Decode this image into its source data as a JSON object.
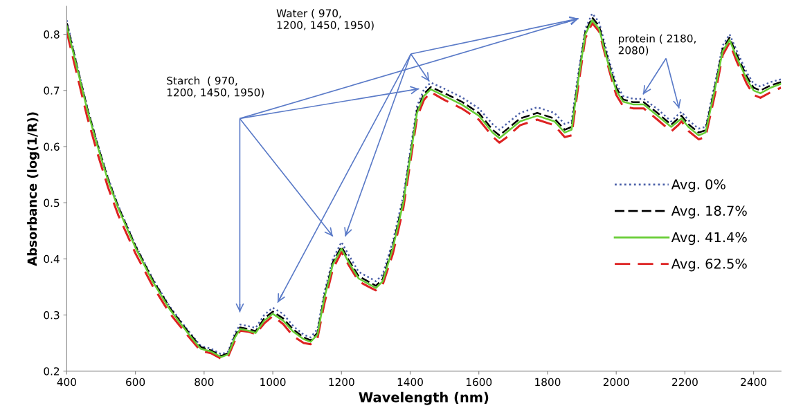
{
  "chart_data": {
    "type": "line",
    "xlabel": "Wavelength (nm)",
    "ylabel": "Absorbance (log(1/R))",
    "x": [
      400,
      430,
      460,
      490,
      520,
      550,
      600,
      650,
      700,
      750,
      790,
      820,
      850,
      870,
      890,
      905,
      930,
      950,
      975,
      1000,
      1030,
      1060,
      1090,
      1110,
      1130,
      1150,
      1175,
      1200,
      1220,
      1250,
      1280,
      1300,
      1320,
      1350,
      1380,
      1400,
      1420,
      1440,
      1460,
      1500,
      1550,
      1600,
      1640,
      1660,
      1680,
      1720,
      1770,
      1820,
      1850,
      1870,
      1890,
      1910,
      1930,
      1950,
      1980,
      2000,
      2020,
      2050,
      2080,
      2120,
      2160,
      2180,
      2190,
      2210,
      2240,
      2260,
      2290,
      2310,
      2330,
      2350,
      2380,
      2400,
      2420,
      2450,
      2480
    ],
    "series": [
      {
        "name": "Avg. 0%",
        "color": "#4a5fa8",
        "line_style": "dotted",
        "values": [
          0.825,
          0.745,
          0.67,
          0.605,
          0.545,
          0.495,
          0.425,
          0.365,
          0.315,
          0.275,
          0.245,
          0.24,
          0.23,
          0.235,
          0.268,
          0.283,
          0.28,
          0.277,
          0.3,
          0.313,
          0.302,
          0.28,
          0.265,
          0.26,
          0.275,
          0.34,
          0.4,
          0.43,
          0.408,
          0.377,
          0.367,
          0.36,
          0.372,
          0.432,
          0.512,
          0.592,
          0.672,
          0.702,
          0.714,
          0.703,
          0.688,
          0.668,
          0.64,
          0.63,
          0.64,
          0.66,
          0.67,
          0.66,
          0.64,
          0.645,
          0.733,
          0.81,
          0.837,
          0.822,
          0.752,
          0.712,
          0.69,
          0.685,
          0.685,
          0.667,
          0.645,
          0.657,
          0.662,
          0.647,
          0.632,
          0.635,
          0.72,
          0.78,
          0.8,
          0.772,
          0.732,
          0.712,
          0.707,
          0.715,
          0.72
        ]
      },
      {
        "name": "Avg. 18.7%",
        "color": "#000000",
        "line_style": "dashed",
        "values": [
          0.82,
          0.743,
          0.668,
          0.603,
          0.543,
          0.493,
          0.423,
          0.363,
          0.313,
          0.273,
          0.243,
          0.237,
          0.227,
          0.232,
          0.263,
          0.278,
          0.275,
          0.271,
          0.294,
          0.306,
          0.294,
          0.274,
          0.26,
          0.255,
          0.268,
          0.333,
          0.394,
          0.422,
          0.399,
          0.369,
          0.359,
          0.352,
          0.364,
          0.424,
          0.504,
          0.584,
          0.664,
          0.694,
          0.706,
          0.695,
          0.68,
          0.66,
          0.63,
          0.62,
          0.63,
          0.65,
          0.66,
          0.65,
          0.63,
          0.635,
          0.724,
          0.804,
          0.83,
          0.815,
          0.745,
          0.705,
          0.684,
          0.679,
          0.679,
          0.66,
          0.639,
          0.65,
          0.655,
          0.64,
          0.625,
          0.629,
          0.714,
          0.774,
          0.794,
          0.765,
          0.725,
          0.705,
          0.7,
          0.709,
          0.715
        ]
      },
      {
        "name": "Avg. 41.4%",
        "color": "#66cc33",
        "line_style": "solid",
        "values": [
          0.815,
          0.74,
          0.665,
          0.6,
          0.54,
          0.49,
          0.42,
          0.36,
          0.31,
          0.27,
          0.24,
          0.235,
          0.225,
          0.23,
          0.26,
          0.275,
          0.272,
          0.268,
          0.29,
          0.302,
          0.29,
          0.27,
          0.257,
          0.252,
          0.265,
          0.33,
          0.39,
          0.418,
          0.395,
          0.365,
          0.355,
          0.348,
          0.36,
          0.42,
          0.5,
          0.58,
          0.66,
          0.69,
          0.702,
          0.69,
          0.675,
          0.655,
          0.625,
          0.615,
          0.625,
          0.645,
          0.655,
          0.645,
          0.625,
          0.63,
          0.72,
          0.8,
          0.825,
          0.81,
          0.74,
          0.7,
          0.68,
          0.675,
          0.675,
          0.655,
          0.635,
          0.645,
          0.65,
          0.635,
          0.62,
          0.625,
          0.71,
          0.77,
          0.79,
          0.76,
          0.72,
          0.7,
          0.695,
          0.705,
          0.712
        ]
      },
      {
        "name": "Avg. 62.5%",
        "color": "#dd2222",
        "line_style": "dashed",
        "values": [
          0.805,
          0.728,
          0.652,
          0.587,
          0.528,
          0.478,
          0.41,
          0.352,
          0.303,
          0.265,
          0.236,
          0.232,
          0.222,
          0.226,
          0.255,
          0.272,
          0.27,
          0.266,
          0.285,
          0.298,
          0.284,
          0.262,
          0.25,
          0.248,
          0.258,
          0.32,
          0.382,
          0.412,
          0.39,
          0.36,
          0.35,
          0.344,
          0.354,
          0.41,
          0.49,
          0.57,
          0.652,
          0.683,
          0.697,
          0.683,
          0.668,
          0.648,
          0.618,
          0.607,
          0.616,
          0.638,
          0.648,
          0.638,
          0.617,
          0.62,
          0.71,
          0.793,
          0.82,
          0.805,
          0.735,
          0.692,
          0.672,
          0.668,
          0.668,
          0.648,
          0.627,
          0.638,
          0.645,
          0.628,
          0.613,
          0.617,
          0.7,
          0.763,
          0.785,
          0.753,
          0.712,
          0.692,
          0.687,
          0.697,
          0.705
        ]
      }
    ],
    "xlim": [
      400,
      2480
    ],
    "xticks": [
      400,
      600,
      800,
      1000,
      1200,
      1400,
      1600,
      1800,
      2000,
      2200,
      2400
    ],
    "ylim": [
      0.2,
      0.85
    ],
    "yticks": [
      0.2,
      0.3,
      0.4,
      0.5,
      0.6,
      0.7,
      0.8
    ],
    "grid": false,
    "legend": "right",
    "marker": "none",
    "annotations": [
      "Starch  ( 970,\n1200, 1450, 1950)",
      "Water ( 970,\n1200, 1450, 1950)",
      "protein ( 2180,\n2080)"
    ]
  }
}
